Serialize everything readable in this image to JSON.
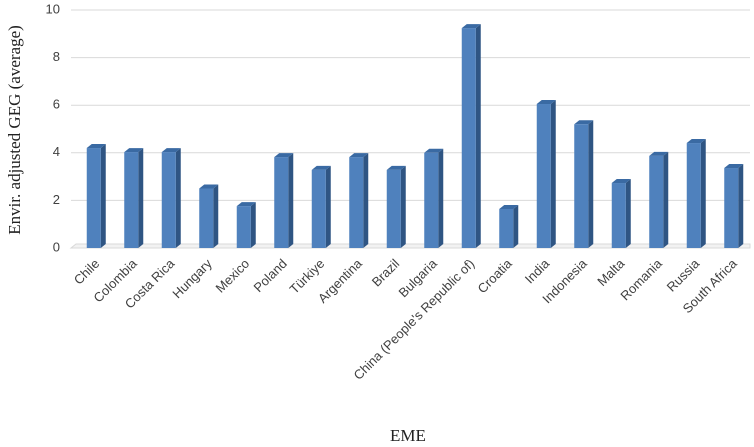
{
  "chart_data": {
    "type": "bar",
    "x_label": "EME",
    "y_label": "Envir. adjusted GEG (average)",
    "categories": [
      "Chile",
      "Colombia",
      "Costa Rica",
      "Hungary",
      "Mexico",
      "Poland",
      "Türkiye",
      "Argentina",
      "Brazil",
      "Bulgaria",
      "China (People's Republic of)",
      "Croatia",
      "India",
      "Indonesia",
      "Malta",
      "Romania",
      "Russia",
      "South Africa"
    ],
    "values": [
      4.2,
      4.03,
      4.03,
      2.5,
      1.76,
      3.82,
      3.28,
      3.82,
      3.28,
      4.0,
      9.24,
      1.64,
      6.05,
      5.2,
      2.73,
      3.87,
      4.41,
      3.36
    ],
    "color": "#4f81bd",
    "ylim": [
      0,
      10
    ],
    "yticks": [
      0,
      2,
      4,
      6,
      8,
      10
    ],
    "grid": true
  }
}
